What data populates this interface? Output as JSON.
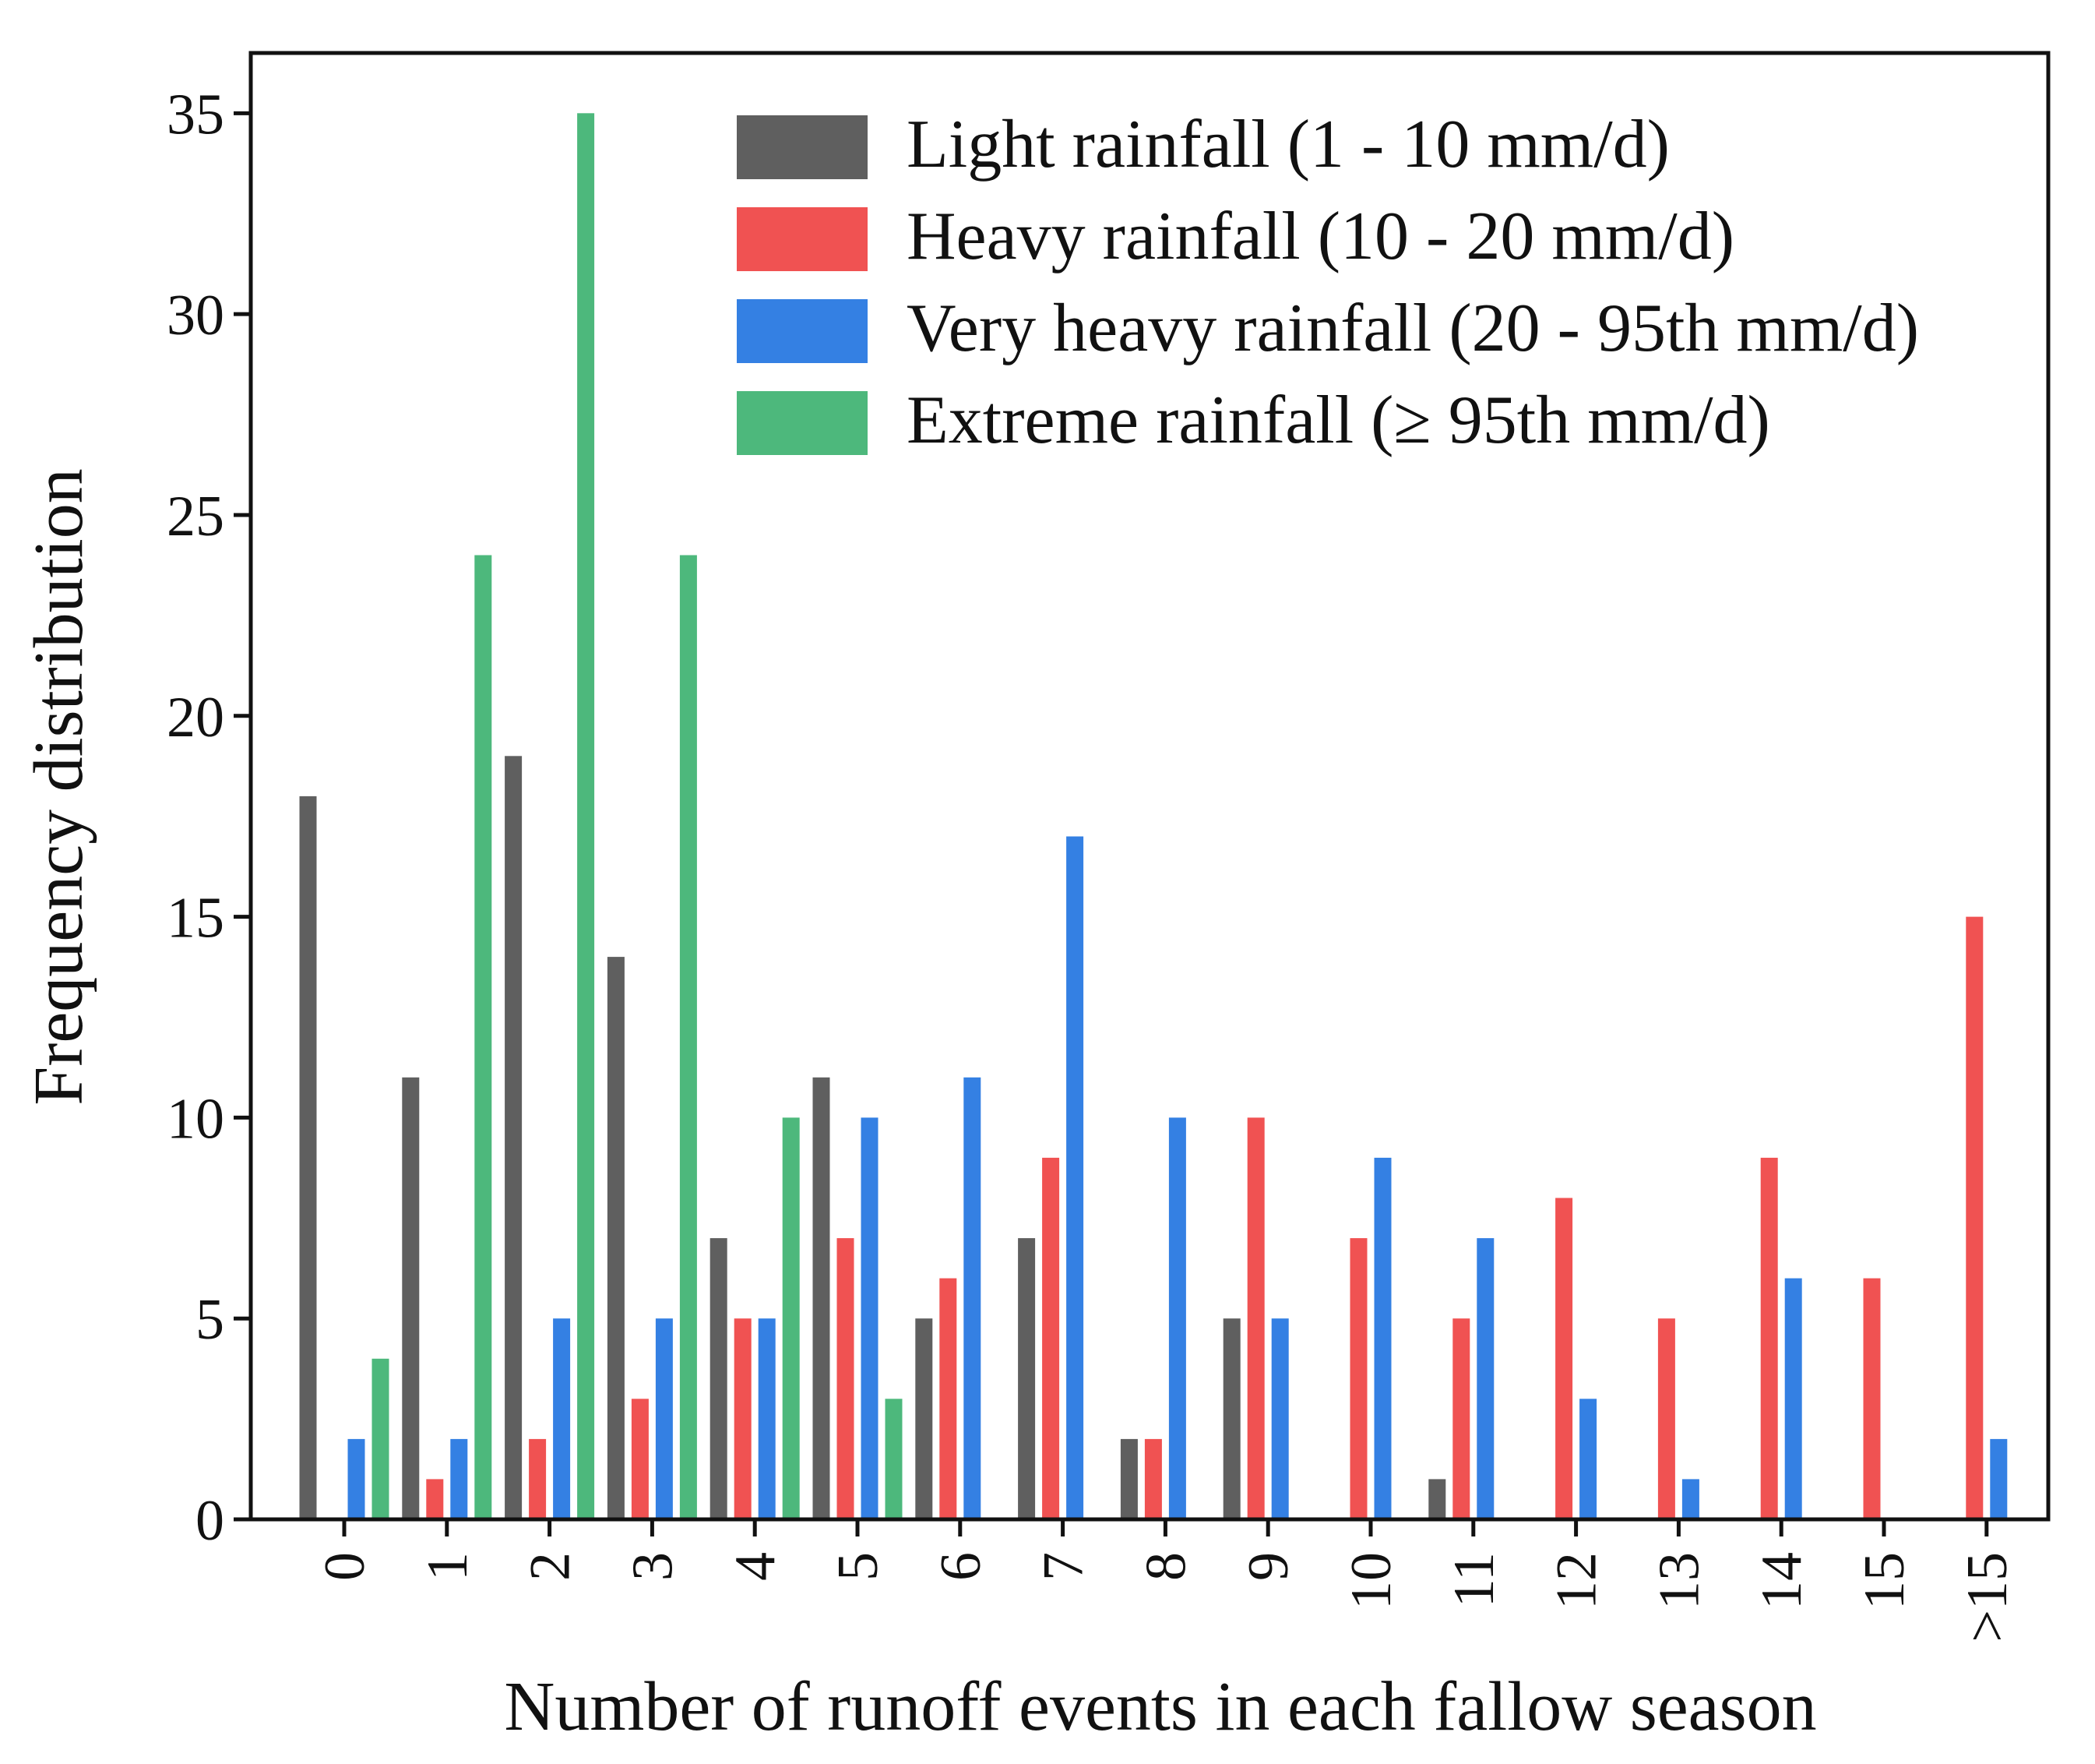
{
  "chart_data": {
    "type": "bar",
    "title": "",
    "xlabel": "Number of runoff events in each fallow season",
    "ylabel": "Frequency distribution",
    "ylim": [
      0,
      36.5
    ],
    "yticks": [
      0,
      5,
      10,
      15,
      20,
      25,
      30,
      35
    ],
    "ytick_labels": [
      "0",
      "5",
      "10",
      "15",
      "20",
      "25",
      "30",
      "35"
    ],
    "categories": [
      "0",
      "1",
      "2",
      "3",
      "4",
      "5",
      "6",
      "7",
      "8",
      "9",
      "10",
      "11",
      "12",
      "13",
      "14",
      "15",
      ">15"
    ],
    "legend_position": "top-right",
    "grid": false,
    "series": [
      {
        "name": "Light rainfall (1 - 10 mm/d)",
        "color": "#5f5f5f",
        "values": [
          18,
          11,
          19,
          14,
          7,
          11,
          5,
          7,
          2,
          5,
          0,
          1,
          0,
          0,
          0,
          0,
          0
        ]
      },
      {
        "name": "Heavy rainfall (10 - 20 mm/d)",
        "color": "#f05252",
        "values": [
          0,
          1,
          2,
          3,
          5,
          7,
          6,
          9,
          2,
          10,
          7,
          5,
          8,
          5,
          9,
          6,
          15
        ]
      },
      {
        "name": "Very heavy rainfall (20 - 95th mm/d)",
        "color": "#3480e3",
        "values": [
          2,
          2,
          5,
          5,
          5,
          10,
          11,
          17,
          10,
          5,
          9,
          7,
          3,
          1,
          6,
          0,
          2
        ]
      },
      {
        "name": "Extreme rainfall (≥ 95th mm/d)",
        "color": "#4db87c",
        "values": [
          4,
          24,
          35,
          24,
          10,
          3,
          0,
          0,
          0,
          0,
          0,
          0,
          0,
          0,
          0,
          0,
          0
        ]
      }
    ]
  }
}
